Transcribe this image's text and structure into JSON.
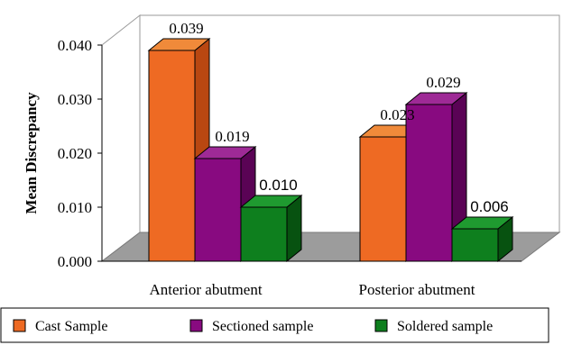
{
  "chart_data": {
    "type": "bar",
    "style": "3d-clustered",
    "categories": [
      "Anterior abutment",
      "Posterior abutment"
    ],
    "series": [
      {
        "name": "Cast Sample",
        "values": [
          0.039,
          0.023
        ],
        "value_labels": [
          "0.039",
          "0.023"
        ],
        "color": "#EE6A23",
        "side_color": "#B94711",
        "top_color": "#F08A3A"
      },
      {
        "name": "Sectioned sample",
        "values": [
          0.019,
          0.029
        ],
        "value_labels": [
          "0.019",
          "0.029"
        ],
        "color": "#880A80",
        "side_color": "#5A0355",
        "top_color": "#9E2A96"
      },
      {
        "name": "Soldered sample",
        "values": [
          0.01,
          0.006
        ],
        "value_labels": [
          "0.010",
          "0.006"
        ],
        "color": "#0E7F1E",
        "side_color": "#075210",
        "top_color": "#1F9A30"
      }
    ],
    "ylabel": "Mean Discrepancy",
    "xlabel": "",
    "title": "",
    "ylim": [
      0.0,
      0.04
    ],
    "yticks": [
      "0.000",
      "0.010",
      "0.020",
      "0.030",
      "0.040"
    ],
    "grid": false,
    "legend_position": "bottom",
    "back_wall_color": "#FFFFFF",
    "floor_color": "#9C9C9C"
  }
}
